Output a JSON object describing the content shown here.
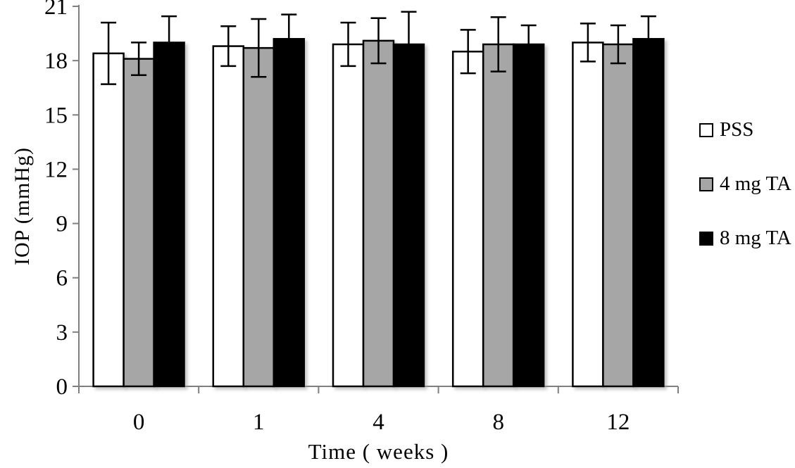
{
  "chart_data": {
    "type": "bar",
    "title": "",
    "xlabel": "Time ( weeks )",
    "ylabel": "IOP (mmHg)",
    "categories": [
      "0",
      "1",
      "4",
      "8",
      "12"
    ],
    "ylim": [
      0,
      21
    ],
    "yticks": [
      0,
      3,
      6,
      9,
      12,
      15,
      18,
      21
    ],
    "grid": false,
    "legend_position": "right",
    "axis_color": "#7f7f7f",
    "error_bar_color": "#000000",
    "series": [
      {
        "name": "PSS",
        "fill": "#ffffff",
        "stroke": "#000000",
        "values": [
          18.4,
          18.8,
          18.9,
          18.5,
          19.0
        ],
        "err_up": [
          1.7,
          1.1,
          1.2,
          1.2,
          1.05
        ],
        "err_down": [
          1.7,
          1.1,
          1.2,
          1.2,
          1.05
        ]
      },
      {
        "name": "4 mg TA",
        "fill": "#a6a6a6",
        "stroke": "#000000",
        "values": [
          18.1,
          18.7,
          19.1,
          18.9,
          18.9
        ],
        "err_up": [
          0.9,
          1.6,
          1.25,
          1.5,
          1.05
        ],
        "err_down": [
          0.9,
          1.6,
          1.25,
          1.5,
          1.05
        ]
      },
      {
        "name": "8 mg TA",
        "fill": "#000000",
        "stroke": "#000000",
        "values": [
          19.0,
          19.2,
          18.9,
          18.9,
          19.2
        ],
        "err_up": [
          1.45,
          1.35,
          1.8,
          1.05,
          1.25
        ],
        "err_down": [
          1.45,
          1.35,
          1.8,
          1.05,
          1.25
        ]
      }
    ]
  }
}
